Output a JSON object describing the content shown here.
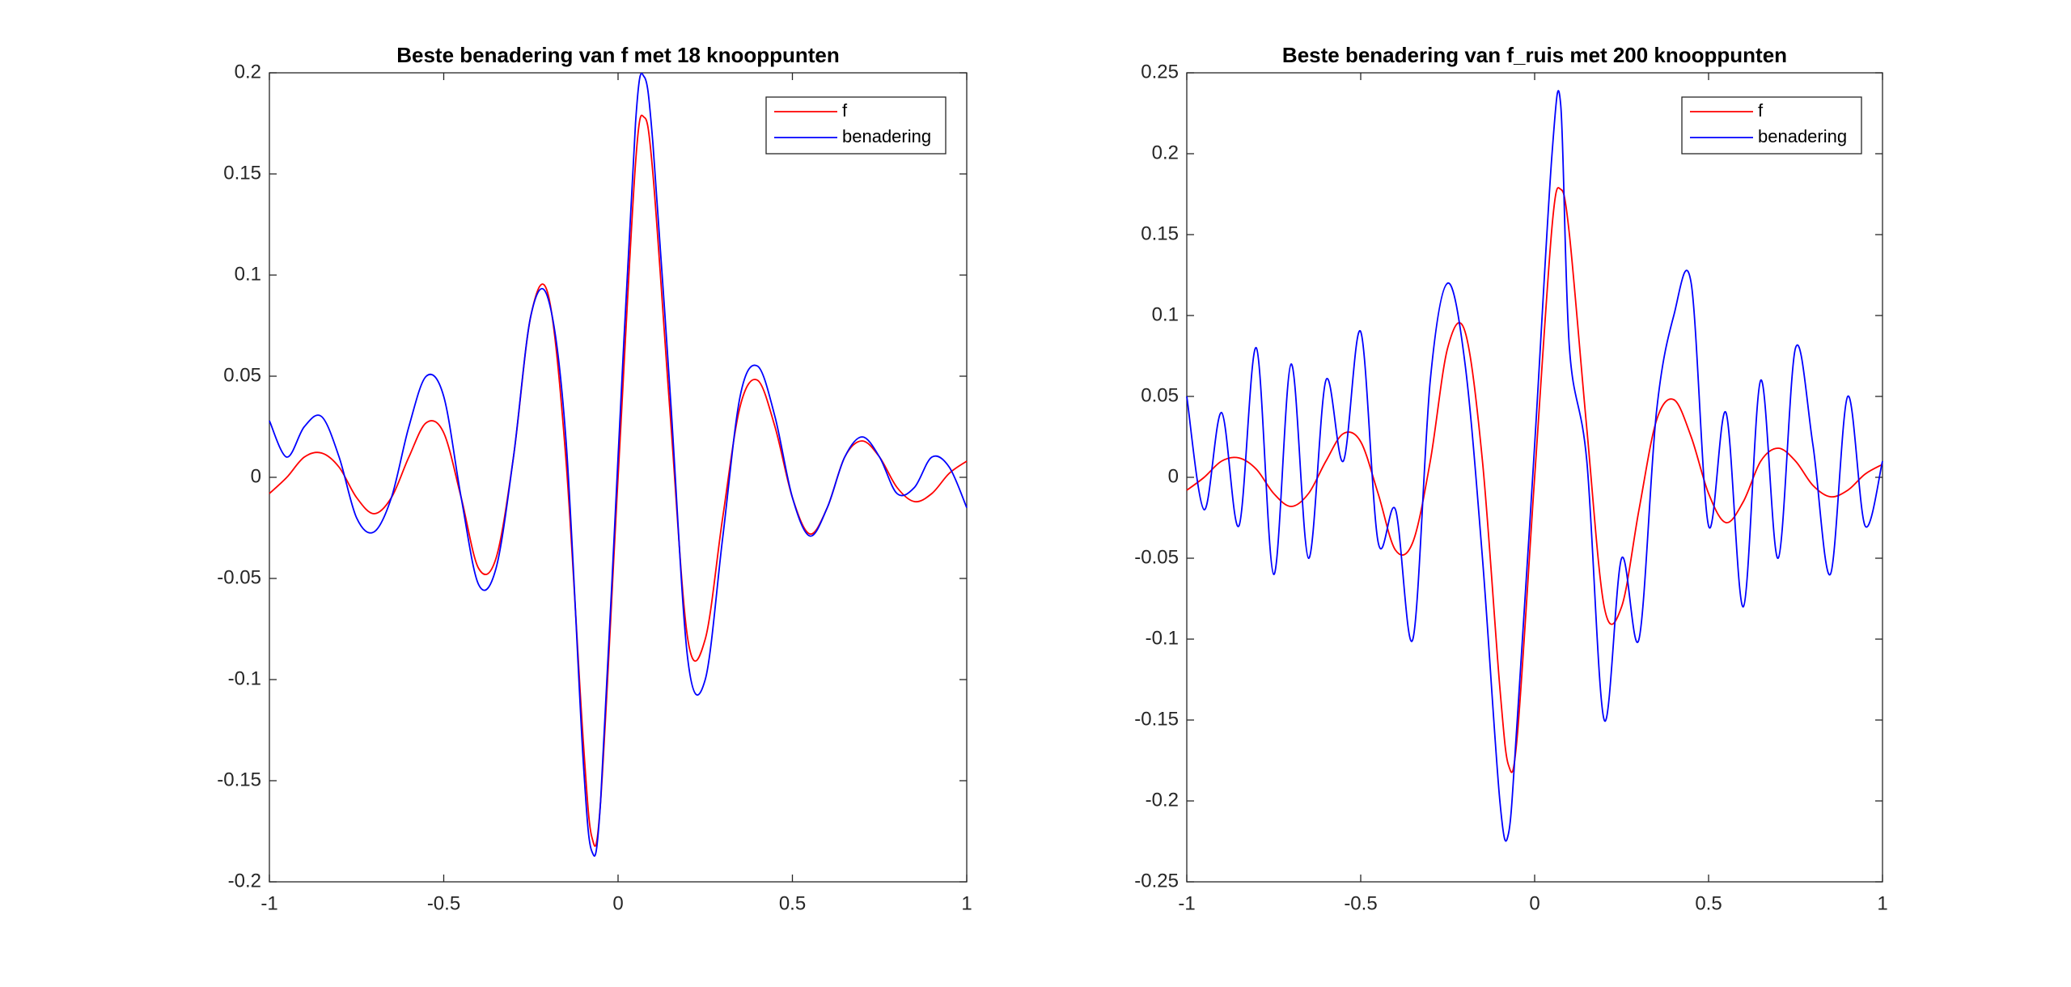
{
  "chart_data": [
    {
      "type": "line",
      "title": "Beste benadering van f met 18 knooppunten",
      "x": [
        -1,
        -0.95,
        -0.9,
        -0.85,
        -0.8,
        -0.75,
        -0.7,
        -0.65,
        -0.6,
        -0.55,
        -0.5,
        -0.45,
        -0.4,
        -0.35,
        -0.3,
        -0.25,
        -0.2,
        -0.15,
        -0.1,
        -0.075,
        -0.05,
        0,
        0.05,
        0.075,
        0.1,
        0.15,
        0.2,
        0.25,
        0.3,
        0.35,
        0.4,
        0.45,
        0.5,
        0.55,
        0.6,
        0.65,
        0.7,
        0.75,
        0.8,
        0.85,
        0.9,
        0.95,
        1
      ],
      "series": [
        {
          "name": "f",
          "color": "#ff0000",
          "values": [
            -0.008,
            0,
            0.01,
            0.012,
            0.005,
            -0.01,
            -0.018,
            -0.01,
            0.01,
            0.027,
            0.022,
            -0.01,
            -0.045,
            -0.04,
            0.01,
            0.08,
            0.09,
            0.01,
            -0.13,
            -0.178,
            -0.16,
            0,
            0.155,
            0.178,
            0.15,
            0.03,
            -0.08,
            -0.08,
            -0.02,
            0.035,
            0.048,
            0.025,
            -0.01,
            -0.028,
            -0.015,
            0.01,
            0.018,
            0.01,
            -0.005,
            -0.012,
            -0.008,
            0.002,
            0.008
          ]
        },
        {
          "name": "benadering",
          "color": "#0000ff",
          "values": [
            0.028,
            0.01,
            0.025,
            0.03,
            0.01,
            -0.02,
            -0.027,
            -0.01,
            0.025,
            0.05,
            0.04,
            -0.01,
            -0.053,
            -0.045,
            0.01,
            0.08,
            0.088,
            0.02,
            -0.14,
            -0.185,
            -0.16,
            0.01,
            0.175,
            0.198,
            0.165,
            0.04,
            -0.09,
            -0.1,
            -0.03,
            0.04,
            0.055,
            0.03,
            -0.01,
            -0.029,
            -0.015,
            0.01,
            0.02,
            0.01,
            -0.008,
            -0.005,
            0.01,
            0.005,
            -0.015
          ]
        }
      ],
      "xlim": [
        -1,
        1
      ],
      "xticks": [
        -1,
        -0.5,
        0,
        0.5,
        1
      ],
      "ylim": [
        -0.2,
        0.2
      ],
      "yticks": [
        -0.2,
        -0.15,
        -0.1,
        -0.05,
        0,
        0.05,
        0.1,
        0.15,
        0.2
      ],
      "grid": false,
      "legend": "northeast"
    },
    {
      "type": "line",
      "title": "Beste benadering van f_ruis met 200 knooppunten",
      "x": [
        -1,
        -0.95,
        -0.9,
        -0.85,
        -0.8,
        -0.75,
        -0.7,
        -0.65,
        -0.6,
        -0.55,
        -0.5,
        -0.45,
        -0.4,
        -0.35,
        -0.3,
        -0.25,
        -0.2,
        -0.15,
        -0.1,
        -0.075,
        -0.05,
        0,
        0.05,
        0.075,
        0.1,
        0.15,
        0.2,
        0.25,
        0.3,
        0.35,
        0.4,
        0.45,
        0.5,
        0.55,
        0.6,
        0.65,
        0.7,
        0.75,
        0.8,
        0.85,
        0.9,
        0.95,
        1
      ],
      "series": [
        {
          "name": "f",
          "color": "#ff0000",
          "values": [
            -0.008,
            0,
            0.01,
            0.012,
            0.005,
            -0.01,
            -0.018,
            -0.01,
            0.01,
            0.027,
            0.022,
            -0.01,
            -0.045,
            -0.04,
            0.01,
            0.08,
            0.09,
            0.01,
            -0.13,
            -0.178,
            -0.16,
            0,
            0.155,
            0.178,
            0.15,
            0.03,
            -0.08,
            -0.08,
            -0.02,
            0.035,
            0.048,
            0.025,
            -0.01,
            -0.028,
            -0.015,
            0.01,
            0.018,
            0.01,
            -0.005,
            -0.012,
            -0.008,
            0.002,
            0.008
          ]
        },
        {
          "name": "benadering",
          "color": "#0000ff",
          "values": [
            0.05,
            -0.02,
            0.04,
            -0.03,
            0.08,
            -0.06,
            0.07,
            -0.05,
            0.06,
            0.01,
            0.09,
            -0.04,
            -0.02,
            -0.1,
            0.06,
            0.12,
            0.07,
            -0.05,
            -0.2,
            -0.22,
            -0.15,
            0.02,
            0.2,
            0.23,
            0.08,
            0.01,
            -0.15,
            -0.05,
            -0.1,
            0.04,
            0.1,
            0.12,
            -0.03,
            0.04,
            -0.08,
            0.06,
            -0.05,
            0.08,
            0.02,
            -0.06,
            0.05,
            -0.03,
            0.01
          ]
        }
      ],
      "xlim": [
        -1,
        1
      ],
      "xticks": [
        -1,
        -0.5,
        0,
        0.5,
        1
      ],
      "ylim": [
        -0.25,
        0.25
      ],
      "yticks": [
        -0.25,
        -0.2,
        -0.15,
        -0.1,
        -0.05,
        0,
        0.05,
        0.1,
        0.15,
        0.2,
        0.25
      ],
      "grid": false,
      "legend": "northeast"
    }
  ]
}
